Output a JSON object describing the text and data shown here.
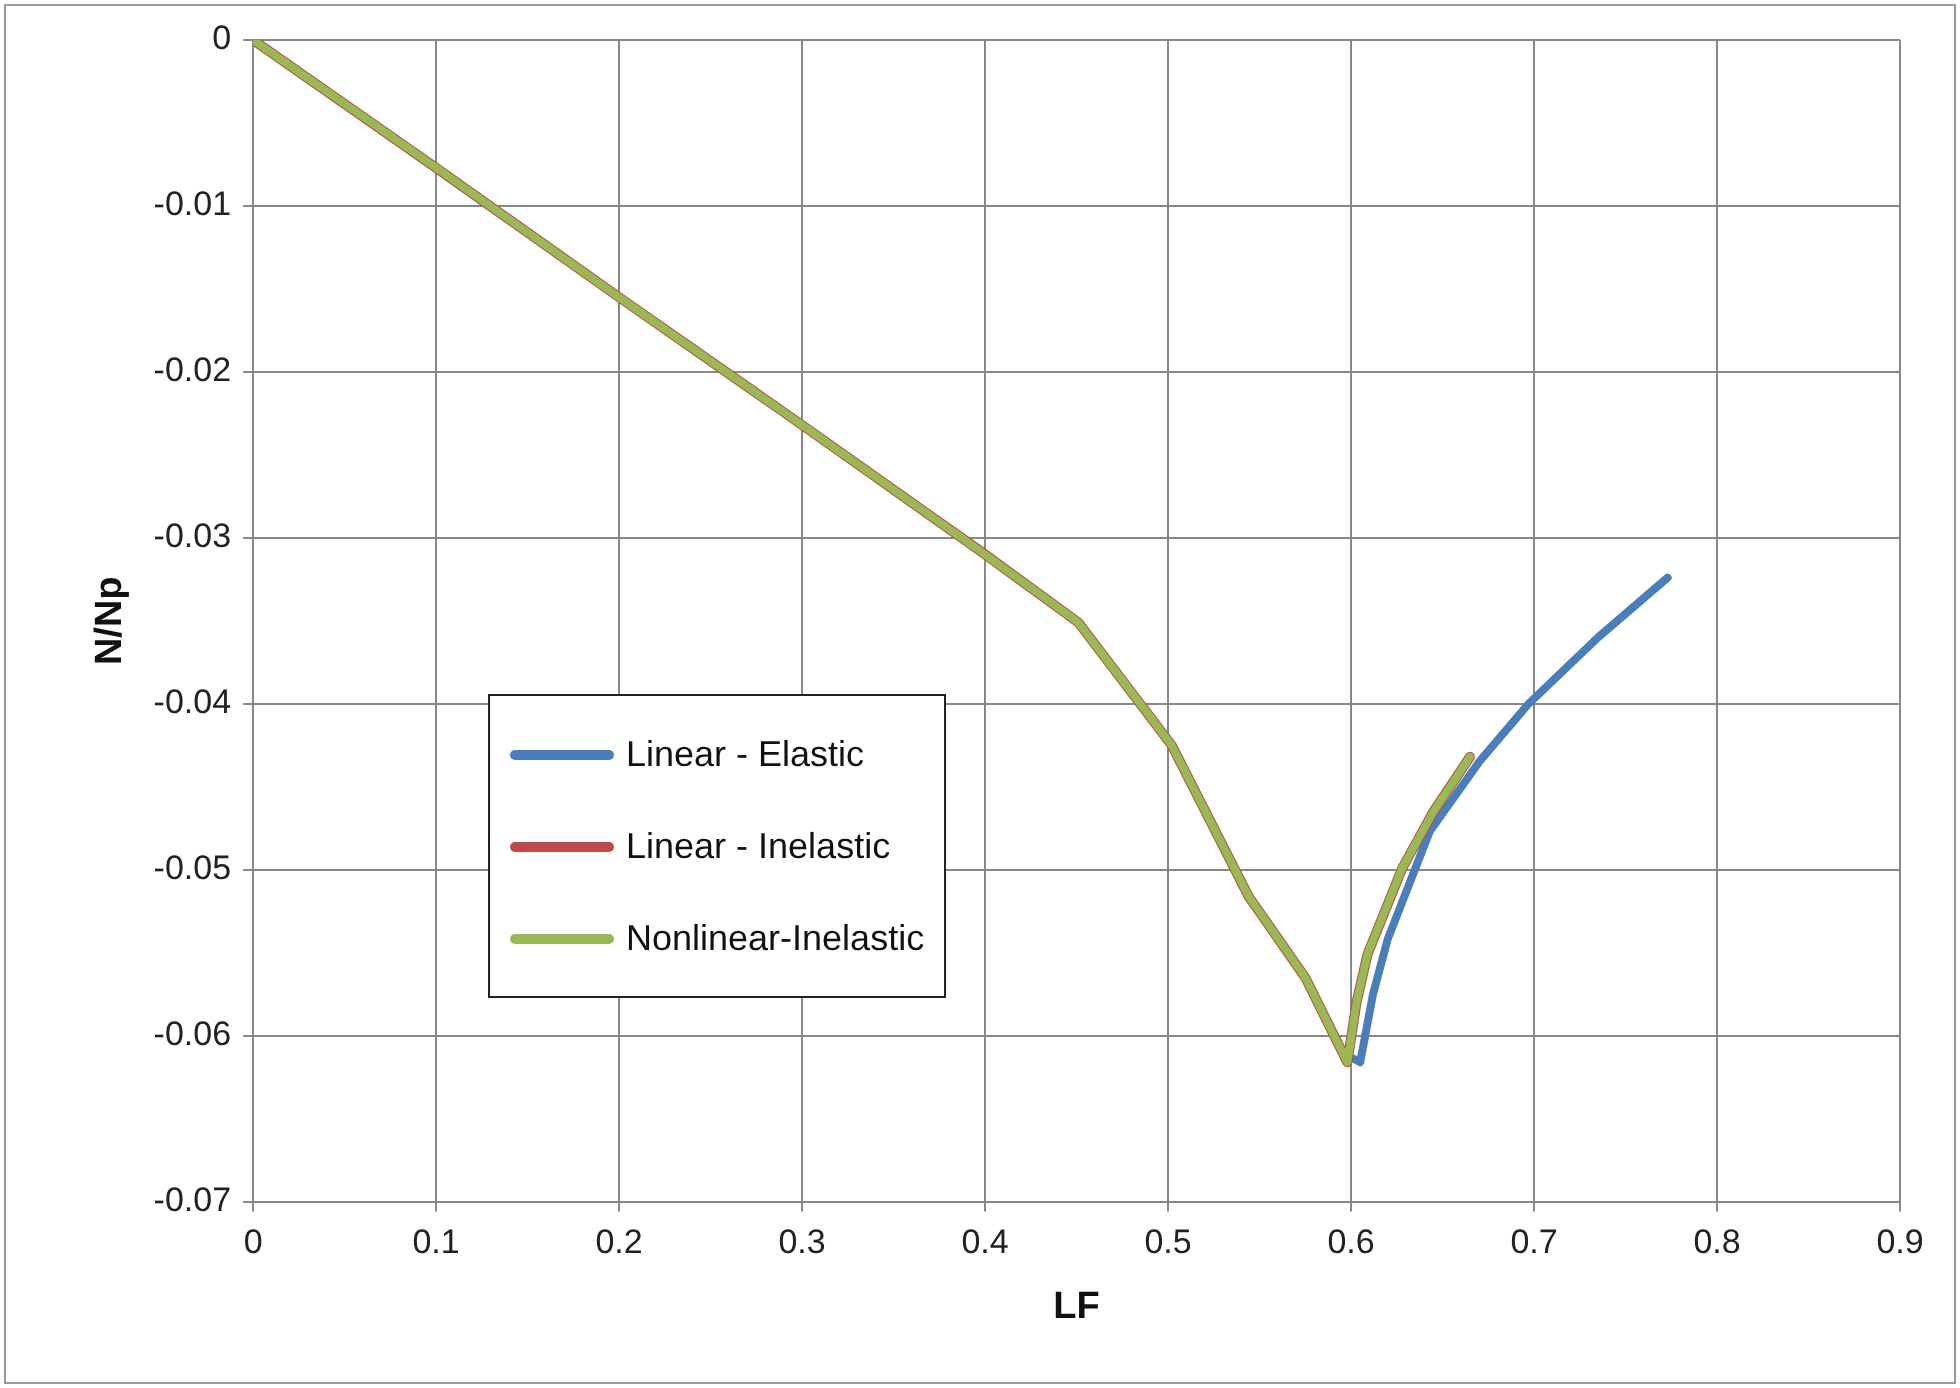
{
  "chart_data": {
    "type": "line",
    "xlabel": "LF",
    "ylabel": "N/Np",
    "xlim": [
      0,
      0.9
    ],
    "ylim": [
      -0.07,
      0
    ],
    "xticks": [
      0,
      0.1,
      0.2,
      0.3,
      0.4,
      0.5,
      0.6,
      0.7,
      0.8,
      0.9
    ],
    "yticks": [
      -0.07,
      -0.06,
      -0.05,
      -0.04,
      -0.03,
      -0.02,
      -0.01,
      0
    ],
    "grid": true,
    "legend": "left",
    "marker": "none",
    "line_style": "solid",
    "series": [
      {
        "name": "Linear - Elastic",
        "color": "#4a7ebb",
        "x": [
          0.598,
          0.605,
          0.612,
          0.62,
          0.643,
          0.67,
          0.697,
          0.735,
          0.773
        ],
        "values": [
          -0.0612,
          -0.0616,
          -0.0575,
          -0.0542,
          -0.0477,
          -0.0435,
          -0.04,
          -0.036,
          -0.0324
        ]
      },
      {
        "name": "Linear - Inelastic",
        "color": "#be4b48",
        "x": [
          0,
          0.1,
          0.2,
          0.3,
          0.4,
          0.451,
          0.502,
          0.544,
          0.575,
          0.598,
          0.603,
          0.609,
          0.628,
          0.645,
          0.665
        ],
        "values": [
          0,
          -0.0077,
          -0.0155,
          -0.0232,
          -0.031,
          -0.0351,
          -0.0425,
          -0.0516,
          -0.0565,
          -0.0616,
          -0.058,
          -0.0551,
          -0.0499,
          -0.0465,
          -0.0432
        ]
      },
      {
        "name": "Nonlinear-Inelastic",
        "color": "#98b954",
        "x": [
          0,
          0.1,
          0.2,
          0.3,
          0.4,
          0.451,
          0.502,
          0.544,
          0.575,
          0.598,
          0.603,
          0.609,
          0.628,
          0.645,
          0.665
        ],
        "values": [
          0,
          -0.0077,
          -0.0155,
          -0.0232,
          -0.031,
          -0.0351,
          -0.0425,
          -0.0516,
          -0.0565,
          -0.0616,
          -0.058,
          -0.0551,
          -0.0499,
          -0.0465,
          -0.0432
        ]
      }
    ]
  }
}
